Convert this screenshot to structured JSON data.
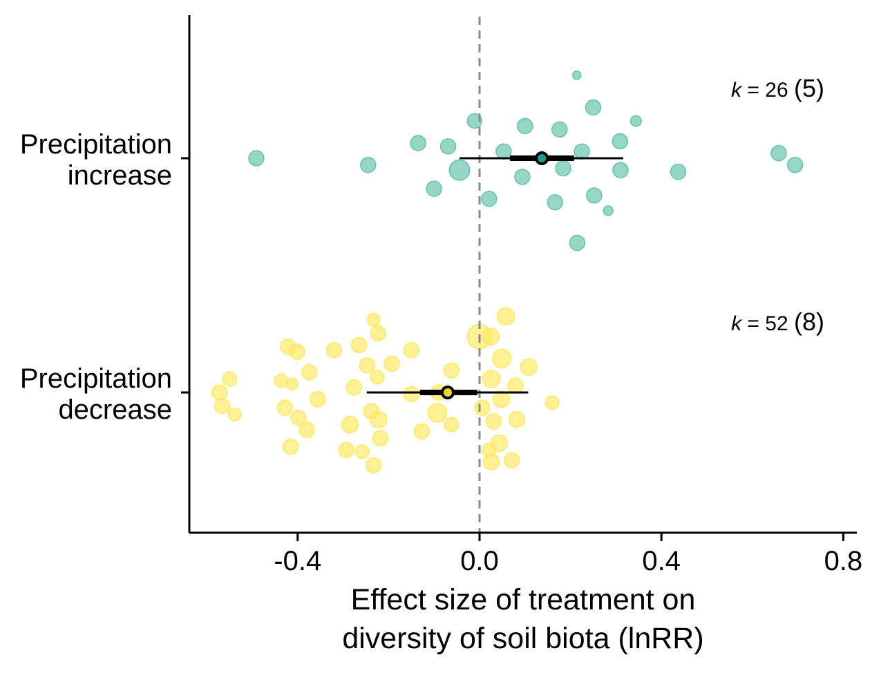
{
  "chart_data": {
    "type": "scatter",
    "xlabel": "Effect size of treatment on diversity of soil biota (lnRR)",
    "xlabel_lines": [
      "Effect size of treatment on",
      "diversity of soil biota (lnRR)"
    ],
    "xlim": [
      -0.63,
      0.83
    ],
    "x_ticks": [
      "-0.4",
      "0.0",
      "0.4",
      "0.8"
    ],
    "x_tick_values": [
      -0.4,
      0.0,
      0.4,
      0.8
    ],
    "zero_line": true,
    "grid": false,
    "categories": [
      "Precipitation increase",
      "Precipitation decrease"
    ],
    "category_lines": [
      [
        "Precipitation",
        "increase"
      ],
      [
        "Precipitation",
        "decrease"
      ]
    ],
    "series": [
      {
        "category": "Precipitation increase",
        "color": "#5cc0a6",
        "mean_color": "#1e9e8a",
        "k_prefix": "k",
        "k_text": "= 26",
        "k_paren": "(5)",
        "mean": 0.137,
        "ci95": [
          -0.044,
          0.316
        ],
        "ci_inner": [
          0.067,
          0.208
        ],
        "points": [
          {
            "x": 0.214,
            "y": 0.49,
            "w": 0.3
          },
          {
            "x": 0.25,
            "y": 0.3,
            "w": 1.0
          },
          {
            "x": -0.011,
            "y": 0.22,
            "w": 0.9
          },
          {
            "x": 0.1,
            "y": 0.19,
            "w": 1.0
          },
          {
            "x": 0.176,
            "y": 0.17,
            "w": 1.0
          },
          {
            "x": 0.344,
            "y": 0.22,
            "w": 0.5
          },
          {
            "x": 0.309,
            "y": 0.1,
            "w": 1.0
          },
          {
            "x": -0.135,
            "y": 0.09,
            "w": 1.0
          },
          {
            "x": -0.069,
            "y": 0.07,
            "w": 1.0
          },
          {
            "x": 0.053,
            "y": 0.04,
            "w": 1.0
          },
          {
            "x": 0.225,
            "y": 0.04,
            "w": 1.0
          },
          {
            "x": -0.491,
            "y": 0.0,
            "w": 1.0
          },
          {
            "x": -0.245,
            "y": -0.04,
            "w": 1.0
          },
          {
            "x": -0.044,
            "y": -0.07,
            "w": 1.8
          },
          {
            "x": 0.184,
            "y": -0.06,
            "w": 1.0
          },
          {
            "x": 0.31,
            "y": -0.07,
            "w": 1.0
          },
          {
            "x": 0.437,
            "y": -0.08,
            "w": 1.0
          },
          {
            "x": 0.658,
            "y": 0.03,
            "w": 1.0
          },
          {
            "x": 0.694,
            "y": -0.04,
            "w": 1.0
          },
          {
            "x": 0.094,
            "y": -0.11,
            "w": 1.0
          },
          {
            "x": -0.1,
            "y": -0.18,
            "w": 1.0
          },
          {
            "x": 0.021,
            "y": -0.24,
            "w": 1.0
          },
          {
            "x": 0.166,
            "y": -0.26,
            "w": 1.0
          },
          {
            "x": 0.252,
            "y": -0.22,
            "w": 1.0
          },
          {
            "x": 0.283,
            "y": -0.31,
            "w": 0.4
          },
          {
            "x": 0.215,
            "y": -0.5,
            "w": 1.0
          }
        ]
      },
      {
        "category": "Precipitation decrease",
        "color": "#ffe85c",
        "mean_color": "#f2da1a",
        "k_prefix": "k",
        "k_text": "= 52",
        "k_paren": "(8)",
        "mean": -0.07,
        "ci95": [
          -0.248,
          0.107
        ],
        "ci_inner": [
          -0.131,
          -0.005
        ],
        "points": [
          {
            "x": -0.233,
            "y": 0.43,
            "w": 0.7
          },
          {
            "x": 0.058,
            "y": 0.45,
            "w": 1.3
          },
          {
            "x": 0.0,
            "y": 0.33,
            "w": 2.6
          },
          {
            "x": 0.025,
            "y": 0.33,
            "w": 1.2
          },
          {
            "x": -0.223,
            "y": 0.35,
            "w": 1.0
          },
          {
            "x": -0.421,
            "y": 0.27,
            "w": 1.0
          },
          {
            "x": -0.401,
            "y": 0.24,
            "w": 1.0
          },
          {
            "x": -0.32,
            "y": 0.25,
            "w": 1.0
          },
          {
            "x": -0.265,
            "y": 0.28,
            "w": 1.0
          },
          {
            "x": -0.15,
            "y": 0.25,
            "w": 1.0
          },
          {
            "x": 0.049,
            "y": 0.2,
            "w": 1.5
          },
          {
            "x": -0.247,
            "y": 0.16,
            "w": 1.0
          },
          {
            "x": -0.193,
            "y": 0.17,
            "w": 1.0
          },
          {
            "x": 0.108,
            "y": 0.15,
            "w": 1.2
          },
          {
            "x": -0.374,
            "y": 0.12,
            "w": 1.0
          },
          {
            "x": -0.225,
            "y": 0.09,
            "w": 0.8
          },
          {
            "x": -0.062,
            "y": 0.13,
            "w": 1.0
          },
          {
            "x": -0.55,
            "y": 0.08,
            "w": 0.9
          },
          {
            "x": -0.436,
            "y": 0.07,
            "w": 0.8
          },
          {
            "x": -0.412,
            "y": 0.05,
            "w": 0.6
          },
          {
            "x": 0.026,
            "y": 0.08,
            "w": 1.3
          },
          {
            "x": -0.276,
            "y": 0.03,
            "w": 1.0
          },
          {
            "x": 0.079,
            "y": 0.04,
            "w": 1.0
          },
          {
            "x": -0.572,
            "y": 0.0,
            "w": 1.0
          },
          {
            "x": -0.09,
            "y": 0.0,
            "w": 1.0
          },
          {
            "x": -0.15,
            "y": -0.01,
            "w": 1.0
          },
          {
            "x": 0.048,
            "y": -0.04,
            "w": 1.2
          },
          {
            "x": -0.356,
            "y": -0.04,
            "w": 1.0
          },
          {
            "x": -0.566,
            "y": -0.08,
            "w": 1.0
          },
          {
            "x": 0.16,
            "y": -0.06,
            "w": 0.8
          },
          {
            "x": -0.428,
            "y": -0.09,
            "w": 1.0
          },
          {
            "x": -0.238,
            "y": -0.11,
            "w": 1.0
          },
          {
            "x": 0.006,
            "y": -0.09,
            "w": 1.0
          },
          {
            "x": -0.093,
            "y": -0.12,
            "w": 1.5
          },
          {
            "x": -0.538,
            "y": -0.13,
            "w": 0.7
          },
          {
            "x": -0.398,
            "y": -0.15,
            "w": 1.0
          },
          {
            "x": -0.222,
            "y": -0.16,
            "w": 1.2
          },
          {
            "x": 0.031,
            "y": -0.17,
            "w": 1.0
          },
          {
            "x": 0.082,
            "y": -0.16,
            "w": 1.1
          },
          {
            "x": -0.285,
            "y": -0.19,
            "w": 1.2
          },
          {
            "x": -0.062,
            "y": -0.19,
            "w": 0.9
          },
          {
            "x": -0.38,
            "y": -0.22,
            "w": 1.0
          },
          {
            "x": -0.127,
            "y": -0.23,
            "w": 1.0
          },
          {
            "x": -0.218,
            "y": -0.27,
            "w": 1.0
          },
          {
            "x": 0.043,
            "y": -0.3,
            "w": 1.2
          },
          {
            "x": -0.415,
            "y": -0.32,
            "w": 1.0
          },
          {
            "x": -0.293,
            "y": -0.34,
            "w": 1.0
          },
          {
            "x": -0.258,
            "y": -0.35,
            "w": 0.8
          },
          {
            "x": 0.026,
            "y": -0.41,
            "w": 1.1
          },
          {
            "x": 0.071,
            "y": -0.4,
            "w": 1.0
          },
          {
            "x": -0.233,
            "y": -0.43,
            "w": 1.0
          },
          {
            "x": 0.021,
            "y": -0.34,
            "w": 0.8
          }
        ]
      }
    ]
  }
}
